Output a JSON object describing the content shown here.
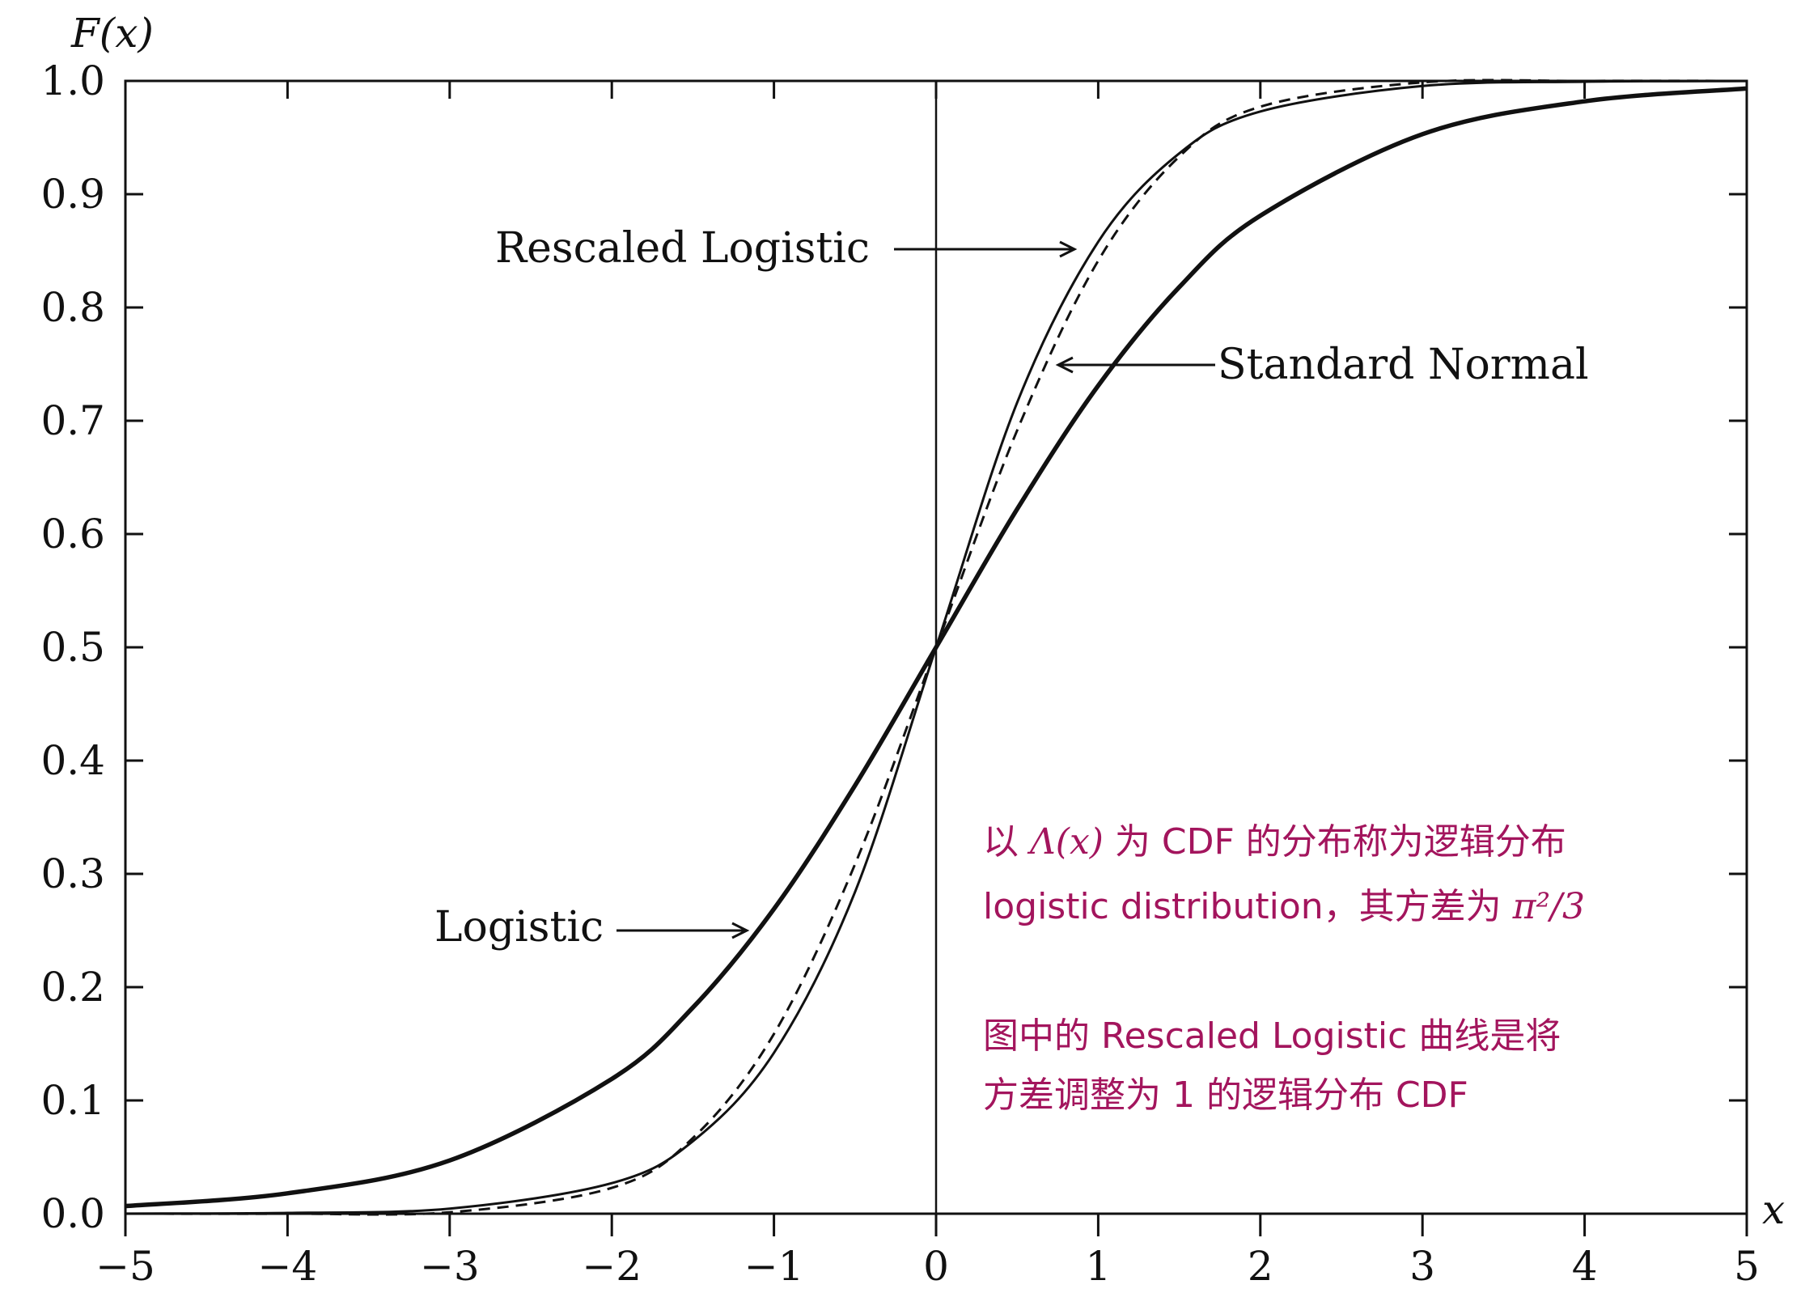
{
  "chart_data": {
    "type": "line",
    "xlabel": "x",
    "ylabel": "F(x)",
    "xlim": [
      -5,
      5
    ],
    "ylim": [
      0,
      1
    ],
    "x_ticks": [
      -5,
      -4,
      -3,
      -2,
      -1,
      0,
      1,
      2,
      3,
      4,
      5
    ],
    "x_tick_labels": [
      "−5",
      "−4",
      "−3",
      "−2",
      "−1",
      "0",
      "1",
      "2",
      "3",
      "4",
      "5"
    ],
    "y_ticks": [
      0,
      0.1,
      0.2,
      0.3,
      0.4,
      0.5,
      0.6,
      0.7,
      0.8,
      0.9,
      1.0
    ],
    "y_tick_labels": [
      "0.0",
      "0.1",
      "0.2",
      "0.3",
      "0.4",
      "0.5",
      "0.6",
      "0.7",
      "0.8",
      "0.9",
      "1.0"
    ],
    "x": [
      -5,
      -4,
      -3,
      -2,
      -1.5,
      -1,
      -0.5,
      0,
      0.5,
      1,
      1.5,
      2,
      3,
      4,
      5
    ],
    "series": [
      {
        "name": "Logistic",
        "style": "solid-thick",
        "values": [
          0.0067,
          0.018,
          0.047,
          0.119,
          0.182,
          0.269,
          0.378,
          0.5,
          0.622,
          0.731,
          0.818,
          0.881,
          0.953,
          0.982,
          0.9933
        ]
      },
      {
        "name": "Rescaled Logistic",
        "style": "solid-thin",
        "values": [
          0.0001,
          0.0007,
          0.0045,
          0.027,
          0.064,
          0.142,
          0.284,
          0.5,
          0.716,
          0.858,
          0.936,
          0.973,
          0.9955,
          0.9993,
          0.9999
        ]
      },
      {
        "name": "Standard Normal",
        "style": "dashed",
        "values": [
          0.0,
          3e-05,
          0.0013,
          0.0228,
          0.0668,
          0.1587,
          0.3085,
          0.5,
          0.6915,
          0.8413,
          0.9332,
          0.9772,
          0.9987,
          0.99997,
          1.0
        ]
      }
    ],
    "annotations": {
      "rescaled_label": "Rescaled Logistic",
      "normal_label": "Standard Normal",
      "logistic_label": "Logistic",
      "note_line1_a": "以 ",
      "note_line1_lambda": "Λ(x)",
      "note_line1_b": " 为 CDF 的分布称为逻辑分布",
      "note_line2_a": "logistic distribution，其方差为 ",
      "note_line2_pi": "π²/3",
      "note_line3": "图中的 Rescaled Logistic 曲线是将",
      "note_line4": "方差调整为 1 的逻辑分布 CDF"
    },
    "grid": false,
    "legend": "none",
    "colors": {
      "axis": "#111111",
      "note": "#a3155d"
    }
  }
}
